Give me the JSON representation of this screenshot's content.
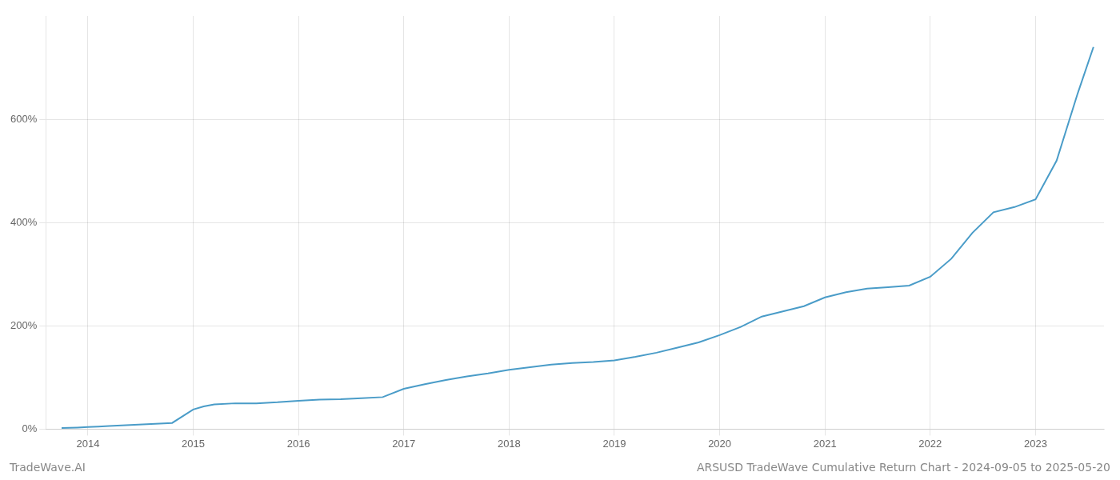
{
  "chart_data": {
    "type": "line",
    "title": "ARSUSD TradeWave Cumulative Return Chart - 2024-09-05 to 2025-05-20",
    "annotations": [
      "TradeWave.AI"
    ],
    "color": "#4a9cc8",
    "grid": true,
    "x": [
      2013.75,
      2013.9,
      2014.0,
      2014.1,
      2014.2,
      2014.4,
      2014.6,
      2014.8,
      2015.0,
      2015.1,
      2015.2,
      2015.4,
      2015.6,
      2015.8,
      2016.0,
      2016.2,
      2016.4,
      2016.6,
      2016.8,
      2017.0,
      2017.2,
      2017.4,
      2017.6,
      2017.8,
      2018.0,
      2018.2,
      2018.4,
      2018.6,
      2018.8,
      2019.0,
      2019.2,
      2019.4,
      2019.6,
      2019.8,
      2020.0,
      2020.2,
      2020.4,
      2020.6,
      2020.8,
      2021.0,
      2021.2,
      2021.4,
      2021.6,
      2021.8,
      2022.0,
      2022.2,
      2022.4,
      2022.6,
      2022.8,
      2023.0,
      2023.2,
      2023.4,
      2023.55
    ],
    "values": [
      2,
      3,
      4,
      5,
      6,
      8,
      10,
      12,
      38,
      44,
      48,
      50,
      50,
      52,
      55,
      57,
      58,
      60,
      62,
      78,
      87,
      95,
      102,
      108,
      115,
      120,
      125,
      128,
      130,
      133,
      140,
      148,
      158,
      168,
      182,
      198,
      218,
      228,
      238,
      255,
      265,
      272,
      275,
      278,
      295,
      330,
      380,
      420,
      430,
      445,
      520,
      650,
      740
    ],
    "xlim": [
      2013.6,
      2023.65
    ],
    "xticks": [
      2014,
      2015,
      2016,
      2017,
      2018,
      2019,
      2020,
      2021,
      2022,
      2023
    ],
    "ylim": [
      0,
      800
    ],
    "yticks": [
      {
        "value": 0,
        "label": "0%"
      },
      {
        "value": 200,
        "label": "200%"
      },
      {
        "value": 400,
        "label": "400%"
      },
      {
        "value": 600,
        "label": "600%"
      }
    ]
  }
}
